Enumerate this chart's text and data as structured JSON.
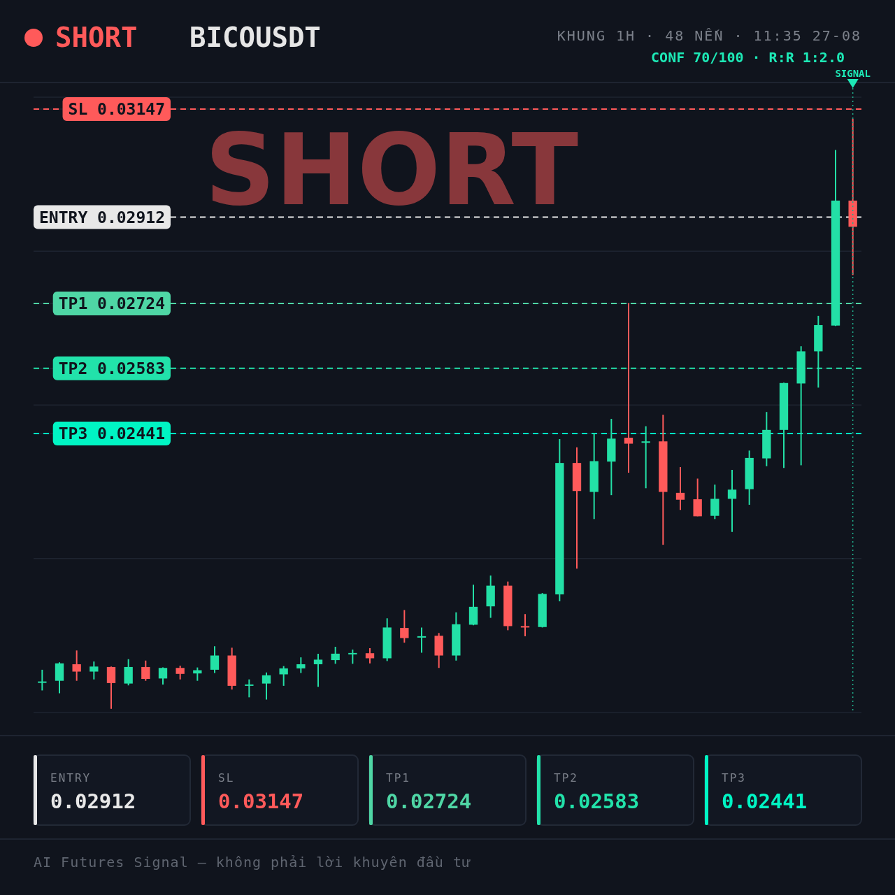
{
  "chart_data": [
    {
      "type": "candlestick",
      "title": "BICOUSDT",
      "annotations": [
        "SHORT",
        "KHUNG 1H · 48 NẾN · 11:35 27-08",
        "CONF 70/100 · R:R 1:2.0",
        "SIGNAL",
        "SHORT",
        "AI Futures Signal — không phải lời khuyên đầu tư"
      ],
      "categories": [
        null,
        null,
        null,
        null,
        null,
        null,
        null,
        null,
        null,
        null,
        null,
        null,
        null,
        null,
        null,
        null,
        null,
        null,
        null,
        null,
        null,
        null,
        null,
        null,
        null,
        null,
        null,
        null,
        null,
        null,
        null,
        null,
        null,
        null,
        null,
        null,
        null,
        null,
        null,
        null,
        null,
        null,
        null,
        null,
        null,
        null,
        null,
        null
      ],
      "ohlc": [
        [
          0.01899,
          0.01927,
          0.01882,
          0.01901
        ],
        [
          0.01903,
          0.01943,
          0.01876,
          0.01941
        ],
        [
          0.01939,
          0.01969,
          0.01903,
          0.01923
        ],
        [
          0.01923,
          0.01945,
          0.01906,
          0.01934
        ],
        [
          0.01933,
          0.01934,
          0.01842,
          0.01898
        ],
        [
          0.01897,
          0.0195,
          0.01893,
          0.01933
        ],
        [
          0.01933,
          0.01947,
          0.01903,
          0.01907
        ],
        [
          0.01908,
          0.01932,
          0.01895,
          0.01931
        ],
        [
          0.01931,
          0.01936,
          0.01906,
          0.01918
        ],
        [
          0.01919,
          0.01932,
          0.01903,
          0.01926
        ],
        [
          0.01927,
          0.01978,
          0.0192,
          0.01958
        ],
        [
          0.01958,
          0.01975,
          0.01884,
          0.01892
        ],
        [
          0.01892,
          0.01906,
          0.01867,
          0.01895
        ],
        [
          0.01897,
          0.01921,
          0.01862,
          0.01915
        ],
        [
          0.01917,
          0.01935,
          0.01892,
          0.0193
        ],
        [
          0.0193,
          0.01954,
          0.0192,
          0.01939
        ],
        [
          0.01939,
          0.01962,
          0.0189,
          0.01949
        ],
        [
          0.01948,
          0.01977,
          0.0194,
          0.01962
        ],
        [
          0.01961,
          0.01971,
          0.0194,
          0.01963
        ],
        [
          0.01963,
          0.01974,
          0.01941,
          0.01952
        ],
        [
          0.01952,
          0.02039,
          0.01946,
          0.02019
        ],
        [
          0.02018,
          0.02057,
          0.01986,
          0.01996
        ],
        [
          0.01997,
          0.02019,
          0.01964,
          0.02
        ],
        [
          0.02001,
          0.02007,
          0.01931,
          0.01958
        ],
        [
          0.01958,
          0.02052,
          0.01947,
          0.02026
        ],
        [
          0.02025,
          0.02112,
          0.02024,
          0.02064
        ],
        [
          0.02065,
          0.02132,
          0.0204,
          0.0211
        ],
        [
          0.0211,
          0.02119,
          0.02013,
          0.02022
        ],
        [
          0.02022,
          0.02048,
          0.02,
          0.02019
        ],
        [
          0.0202,
          0.02094,
          0.02019,
          0.02092
        ],
        [
          0.02091,
          0.02429,
          0.02076,
          0.02377
        ],
        [
          0.02377,
          0.02411,
          0.02147,
          0.02316
        ],
        [
          0.02314,
          0.02442,
          0.02255,
          0.02381
        ],
        [
          0.0238,
          0.02473,
          0.02307,
          0.0243
        ],
        [
          0.02432,
          0.02725,
          0.02356,
          0.02419
        ],
        [
          0.02421,
          0.02457,
          0.02322,
          0.02424
        ],
        [
          0.02424,
          0.02482,
          0.02199,
          0.02314
        ],
        [
          0.02312,
          0.02368,
          0.02275,
          0.02297
        ],
        [
          0.02298,
          0.02343,
          0.02261,
          0.02261
        ],
        [
          0.02262,
          0.0233,
          0.02255,
          0.02299
        ],
        [
          0.02299,
          0.02362,
          0.02227,
          0.02319
        ],
        [
          0.0232,
          0.02404,
          0.02286,
          0.02388
        ],
        [
          0.02387,
          0.02488,
          0.0237,
          0.02449
        ],
        [
          0.02449,
          0.02552,
          0.02366,
          0.02551
        ],
        [
          0.0255,
          0.02631,
          0.02372,
          0.0262
        ],
        [
          0.0262,
          0.02697,
          0.02541,
          0.02677
        ],
        [
          0.02676,
          0.03058,
          0.02675,
          0.02948
        ],
        [
          0.02948,
          0.03126,
          0.02786,
          0.02891
        ]
      ],
      "colors": [
        "#23e0a6",
        "#23e0a6",
        "#ff5a5a",
        "#23e0a6",
        "#ff5a5a",
        "#23e0a6",
        "#ff5a5a",
        "#23e0a6",
        "#ff5a5a",
        "#23e0a6",
        "#23e0a6",
        "#ff5a5a",
        "#23e0a6",
        "#23e0a6",
        "#23e0a6",
        "#23e0a6",
        "#23e0a6",
        "#23e0a6",
        "#23e0a6",
        "#ff5a5a",
        "#23e0a6",
        "#ff5a5a",
        "#23e0a6",
        "#ff5a5a",
        "#23e0a6",
        "#23e0a6",
        "#23e0a6",
        "#ff5a5a",
        "#ff5a5a",
        "#23e0a6",
        "#23e0a6",
        "#ff5a5a",
        "#23e0a6",
        "#23e0a6",
        "#ff5a5a",
        "#23e0a6",
        "#ff5a5a",
        "#ff5a5a",
        "#ff5a5a",
        "#23e0a6",
        "#23e0a6",
        "#23e0a6",
        "#23e0a6",
        "#23e0a6",
        "#23e0a6",
        "#23e0a6",
        "#23e0a6",
        "#ff5a5a"
      ],
      "ylim": [
        0.01834,
        0.03173
      ],
      "yticks": [
        {
          "value": 0.01834,
          "label": null
        },
        {
          "value": 0.02169,
          "label": null
        },
        0.02441,
        {
          "value": 0.02503,
          "label": null
        },
        0.02583,
        0.02724,
        {
          "value": 0.02838,
          "label": null
        },
        0.02912,
        0.03147,
        {
          "value": 0.03173,
          "label": null
        }
      ],
      "grid": "y",
      "tick_labels": "y",
      "ref_lines": [
        {
          "axis": "y",
          "value": 0.02912,
          "label": "ENTRY",
          "color": "#e8e8e8",
          "line_style": "dashed"
        },
        {
          "axis": "y",
          "value": 0.03147,
          "label": "SL",
          "color": "#ff5a5a",
          "line_style": "dashed"
        },
        {
          "axis": "y",
          "value": 0.02724,
          "label": "TP1",
          "color": "#4fd6a5",
          "line_style": "dashed"
        },
        {
          "axis": "y",
          "value": 0.02583,
          "label": "TP2",
          "color": "#22e2aa",
          "line_style": "dashed"
        },
        {
          "axis": "y",
          "value": 0.02441,
          "label": "TP3",
          "color": "#00f5c4",
          "line_style": "dashed"
        }
      ]
    },
    {
      "type": "other",
      "categories": [
        "ENTRY",
        "SL",
        "TP1",
        "TP2",
        "TP3"
      ],
      "values": [
        0.02912,
        0.03147,
        0.02724,
        0.02583,
        0.02441
      ],
      "data_labels": true
    }
  ]
}
